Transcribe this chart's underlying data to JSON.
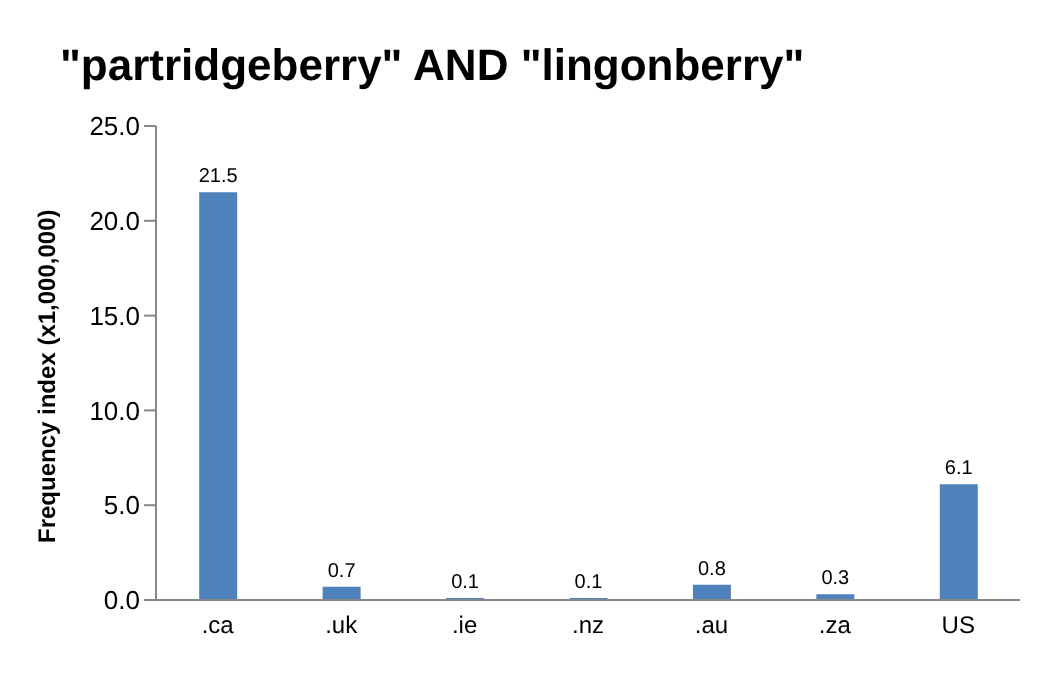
{
  "chart_data": {
    "type": "bar",
    "title": "\"partridgeberry\" AND \"lingonberry\"",
    "ylabel": "Frequency index (x1,000,000)",
    "categories": [
      ".ca",
      ".uk",
      ".ie",
      ".nz",
      ".au",
      ".za",
      "US"
    ],
    "values": [
      21.5,
      0.7,
      0.1,
      0.1,
      0.8,
      0.3,
      6.1
    ],
    "color": "#4f81bd",
    "ylim": [
      0,
      25
    ],
    "yticks": [
      {
        "value": 0,
        "label": "0.0"
      },
      {
        "value": 5,
        "label": "5.0"
      },
      {
        "value": 10,
        "label": "10.0"
      },
      {
        "value": 15,
        "label": "15.0"
      },
      {
        "value": 20,
        "label": "20.0"
      },
      {
        "value": 25,
        "label": "25.0"
      }
    ],
    "data_labels": true,
    "grid": false,
    "legend": false
  }
}
